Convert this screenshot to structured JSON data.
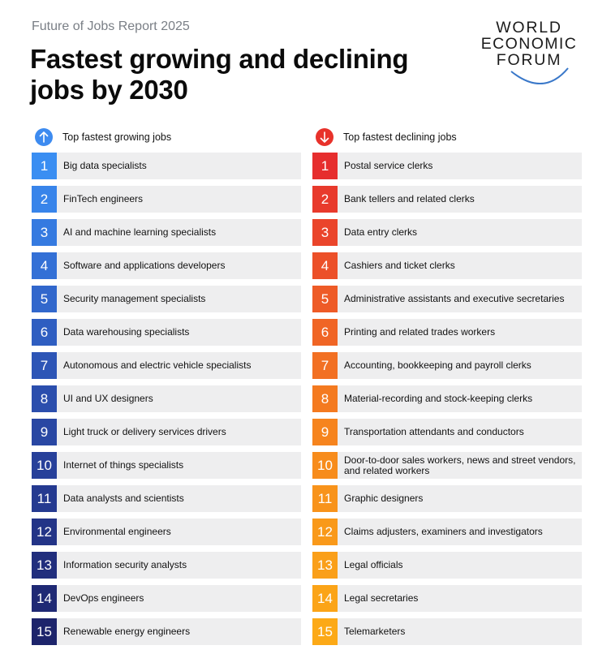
{
  "header": {
    "kicker": "Future of Jobs Report 2025",
    "title": "Fastest growing and declining jobs by 2030"
  },
  "logo": {
    "line1": "WORLD",
    "line2": "ECONOMIC",
    "line3": "FORUM",
    "arc_color": "#3a78c9"
  },
  "growing": {
    "heading": "Top fastest growing jobs",
    "icon": "arrow-up-icon",
    "icon_color": "#3d8bf0",
    "items": [
      {
        "rank": "1",
        "label": "Big data specialists",
        "color": "#3a8ef2"
      },
      {
        "rank": "2",
        "label": "FinTech engineers",
        "color": "#3884ea"
      },
      {
        "rank": "3",
        "label": "AI and machine learning specialists",
        "color": "#357ae0"
      },
      {
        "rank": "4",
        "label": "Software and applications developers",
        "color": "#3370d6"
      },
      {
        "rank": "5",
        "label": "Security management specialists",
        "color": "#3167cc"
      },
      {
        "rank": "6",
        "label": "Data warehousing specialists",
        "color": "#2f5ec1"
      },
      {
        "rank": "7",
        "label": "Autonomous and electric vehicle specialists",
        "color": "#2d55b6"
      },
      {
        "rank": "8",
        "label": "UI and UX designers",
        "color": "#2b4ead"
      },
      {
        "rank": "9",
        "label": "Light truck or delivery services drivers",
        "color": "#2947a3"
      },
      {
        "rank": "10",
        "label": "Internet of things specialists",
        "color": "#27409a"
      },
      {
        "rank": "11",
        "label": "Data analysts and scientists",
        "color": "#253a90"
      },
      {
        "rank": "12",
        "label": "Environmental engineers",
        "color": "#233487"
      },
      {
        "rank": "13",
        "label": "Information security analysts",
        "color": "#212e7d"
      },
      {
        "rank": "14",
        "label": "DevOps engineers",
        "color": "#1f2974"
      },
      {
        "rank": "15",
        "label": "Renewable energy engineers",
        "color": "#1d246b"
      }
    ]
  },
  "declining": {
    "heading": "Top fastest declining jobs",
    "icon": "arrow-down-icon",
    "icon_color": "#e8322b",
    "items": [
      {
        "rank": "1",
        "label": "Postal service clerks",
        "color": "#e62e2e"
      },
      {
        "rank": "2",
        "label": "Bank tellers and related clerks",
        "color": "#e83a2c"
      },
      {
        "rank": "3",
        "label": "Data entry clerks",
        "color": "#ea452b"
      },
      {
        "rank": "4",
        "label": "Cashiers and ticket clerks",
        "color": "#ec5029"
      },
      {
        "rank": "5",
        "label": "Administrative assistants and executive secretaries",
        "color": "#ee5b27"
      },
      {
        "rank": "6",
        "label": "Printing and related trades workers",
        "color": "#f06525"
      },
      {
        "rank": "7",
        "label": "Accounting, bookkeeping and payroll clerks",
        "color": "#f27023"
      },
      {
        "rank": "8",
        "label": "Material-recording and stock-keeping clerks",
        "color": "#f47a20"
      },
      {
        "rank": "9",
        "label": "Transportation attendants and conductors",
        "color": "#f6841e"
      },
      {
        "rank": "10",
        "label": "Door-to-door sales workers, news and street vendors, and related workers",
        "color": "#f78c1c"
      },
      {
        "rank": "11",
        "label": "Graphic designers",
        "color": "#f8931b"
      },
      {
        "rank": "12",
        "label": "Claims adjusters, examiners and investigators",
        "color": "#f9991a"
      },
      {
        "rank": "13",
        "label": "Legal officials",
        "color": "#fa9f19"
      },
      {
        "rank": "14",
        "label": "Legal secretaries",
        "color": "#fba418"
      },
      {
        "rank": "15",
        "label": "Telemarketers",
        "color": "#fca917"
      }
    ]
  }
}
